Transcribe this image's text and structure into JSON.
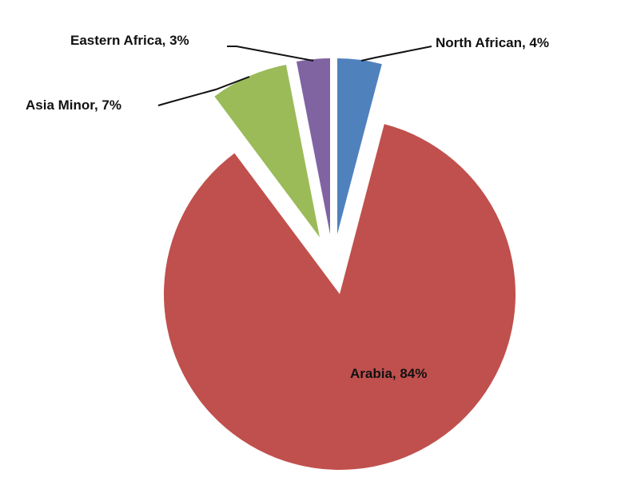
{
  "chart_data": {
    "type": "pie",
    "exploded": true,
    "start": "top, clockwise",
    "slices": [
      {
        "label": "North African",
        "value": 4,
        "display": "North African, 4%",
        "color": "#4f81bd"
      },
      {
        "label": "Arabia",
        "value": 84,
        "display": "Arabia, 84%",
        "color": "#c0504d"
      },
      {
        "label": "Asia Minor",
        "value": 7,
        "display": "Asia Minor, 7%",
        "color": "#9bbb59"
      },
      {
        "label": "Eastern Africa",
        "value": 3,
        "display": "Eastern Africa, 3%",
        "color": "#8064a2"
      }
    ]
  }
}
